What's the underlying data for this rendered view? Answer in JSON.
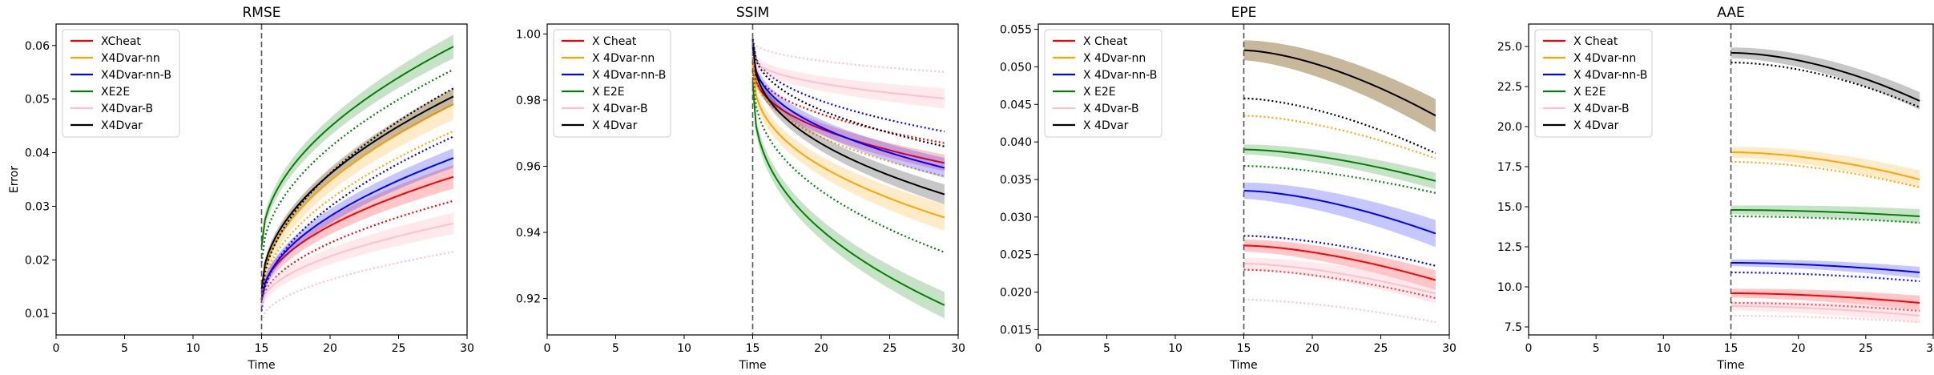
{
  "colors": {
    "Cheat": "#ff0000",
    "4Dvar-nn": "#ffa500",
    "4Dvar-nn-B": "#0000ff",
    "E2E": "#008000",
    "4Dvar-B": "#ffc0cb",
    "4Dvar": "#000000"
  },
  "chart_data": [
    {
      "type": "line",
      "title": "RMSE",
      "xlabel": "Time",
      "ylabel": "Error",
      "xlim": [
        0,
        30
      ],
      "ylim": [
        0.006,
        0.064
      ],
      "xticks": [
        "0",
        "5",
        "10",
        "15",
        "20",
        "25",
        "30"
      ],
      "yticks": [
        "0.01",
        "0.02",
        "0.03",
        "0.04",
        "0.05",
        "0.06"
      ],
      "vline_x": 15,
      "legend": {
        "placement": "top-left",
        "labels": [
          "XCheat",
          "X4Dvar-nn",
          "X4Dvar-nn-B",
          "XE2E",
          "X4Dvar-B",
          "X4Dvar"
        ]
      },
      "series": [
        {
          "name": "Cheat",
          "start": 0.0128,
          "end": 0.0355,
          "band": 0.0022,
          "dotted_start": 0.0115,
          "dotted_end": 0.031,
          "curve": 0.5
        },
        {
          "name": "4Dvar-nn",
          "start": 0.0135,
          "end": 0.049,
          "band": 0.0028,
          "dotted_start": 0.0125,
          "dotted_end": 0.044,
          "curve": 0.5
        },
        {
          "name": "4Dvar-nn-B",
          "start": 0.012,
          "end": 0.039,
          "band": 0.0018,
          "dotted_start": 0.0105,
          "dotted_end": 0.043,
          "curve": 0.5
        },
        {
          "name": "E2E",
          "start": 0.0225,
          "end": 0.0598,
          "band": 0.0022,
          "dotted_start": 0.0195,
          "dotted_end": 0.0555,
          "curve": 0.5
        },
        {
          "name": "4Dvar-B",
          "start": 0.0115,
          "end": 0.0268,
          "band": 0.002,
          "dotted_start": 0.0085,
          "dotted_end": 0.0215,
          "curve": 0.5
        },
        {
          "name": "4Dvar",
          "start": 0.0145,
          "end": 0.0505,
          "band": 0.0015,
          "dotted_start": 0.0125,
          "dotted_end": 0.052,
          "curve": 0.5
        }
      ]
    },
    {
      "type": "line",
      "title": "SSIM",
      "xlabel": "Time",
      "ylabel": "",
      "xlim": [
        0,
        30
      ],
      "ylim": [
        0.909,
        1.003
      ],
      "xticks": [
        "0",
        "5",
        "10",
        "15",
        "20",
        "25",
        "30"
      ],
      "yticks": [
        "0.92",
        "0.94",
        "0.96",
        "0.98",
        "1.00"
      ],
      "vline_x": 15,
      "legend": {
        "placement": "top-left",
        "labels": [
          "X Cheat",
          "X 4Dvar-nn",
          "X 4Dvar-nn-B",
          "X E2E",
          "X 4Dvar-B",
          "X 4Dvar"
        ]
      },
      "series": [
        {
          "name": "Cheat",
          "start": 0.9915,
          "end": 0.961,
          "band": 0.0025,
          "dotted_start": 0.993,
          "dotted_end": 0.967,
          "curve": 0.4
        },
        {
          "name": "4Dvar-nn",
          "start": 0.9905,
          "end": 0.9445,
          "band": 0.004,
          "dotted_start": 0.992,
          "dotted_end": 0.957,
          "curve": 0.4
        },
        {
          "name": "4Dvar-nn-B",
          "start": 0.996,
          "end": 0.9595,
          "band": 0.003,
          "dotted_start": 0.998,
          "dotted_end": 0.9705,
          "curve": 0.4
        },
        {
          "name": "E2E",
          "start": 0.9855,
          "end": 0.918,
          "band": 0.004,
          "dotted_start": 0.989,
          "dotted_end": 0.934,
          "curve": 0.4
        },
        {
          "name": "4Dvar-B",
          "start": 0.994,
          "end": 0.9805,
          "band": 0.003,
          "dotted_start": 0.9985,
          "dotted_end": 0.9885,
          "curve": 0.4
        },
        {
          "name": "4Dvar",
          "start": 0.997,
          "end": 0.9515,
          "band": 0.003,
          "dotted_start": 0.9985,
          "dotted_end": 0.966,
          "curve": 0.4
        }
      ]
    },
    {
      "type": "line",
      "title": "EPE",
      "xlabel": "Time",
      "ylabel": "",
      "xlim": [
        0,
        30
      ],
      "ylim": [
        0.0143,
        0.0557
      ],
      "xticks": [
        "0",
        "5",
        "10",
        "15",
        "20",
        "25",
        "30"
      ],
      "yticks": [
        "0.015",
        "0.020",
        "0.025",
        "0.030",
        "0.035",
        "0.040",
        "0.045",
        "0.050",
        "0.055"
      ],
      "vline_x": 15,
      "legend": {
        "placement": "top-left",
        "labels": [
          "X Cheat",
          "X 4Dvar-nn",
          "X 4Dvar-nn-B",
          "X E2E",
          "X 4Dvar-B",
          "X 4Dvar"
        ]
      },
      "series": [
        {
          "name": "Cheat",
          "start": 0.0262,
          "end": 0.0216,
          "band": 0.0013,
          "dotted_start": 0.023,
          "dotted_end": 0.0192,
          "curve": 1.6
        },
        {
          "name": "4Dvar-nn",
          "start": 0.0522,
          "end": 0.0435,
          "band": 0.0022,
          "dotted_start": 0.0435,
          "dotted_end": 0.0378,
          "curve": 1.6
        },
        {
          "name": "4Dvar-nn-B",
          "start": 0.0335,
          "end": 0.0278,
          "band": 0.0018,
          "dotted_start": 0.0275,
          "dotted_end": 0.0235,
          "curve": 1.6
        },
        {
          "name": "E2E",
          "start": 0.039,
          "end": 0.0348,
          "band": 0.0011,
          "dotted_start": 0.0368,
          "dotted_end": 0.0332,
          "curve": 1.6
        },
        {
          "name": "4Dvar-B",
          "start": 0.0238,
          "end": 0.0198,
          "band": 0.0013,
          "dotted_start": 0.019,
          "dotted_end": 0.016,
          "curve": 1.6
        },
        {
          "name": "4Dvar",
          "start": 0.0522,
          "end": 0.0435,
          "band": 0.0022,
          "dotted_start": 0.0458,
          "dotted_end": 0.0385,
          "curve": 1.6
        }
      ]
    },
    {
      "type": "line",
      "title": "AAE",
      "xlabel": "Time",
      "ylabel": "",
      "xlim": [
        0,
        30
      ],
      "ylim": [
        7.0,
        26.4
      ],
      "xticks": [
        "0",
        "5",
        "10",
        "15",
        "20",
        "25",
        "30"
      ],
      "yticks": [
        "7.5",
        "10.0",
        "12.5",
        "15.0",
        "17.5",
        "20.0",
        "22.5",
        "25.0"
      ],
      "vline_x": 15,
      "legend": {
        "placement": "top-left",
        "labels": [
          "X Cheat",
          "X 4Dvar-nn",
          "X 4Dvar-nn-B",
          "X E2E",
          "X 4Dvar-B",
          "X 4Dvar"
        ]
      },
      "series": [
        {
          "name": "Cheat",
          "start": 9.6,
          "end": 9.0,
          "band": 0.45,
          "dotted_start": 9.0,
          "dotted_end": 8.5,
          "curve": 1.8
        },
        {
          "name": "4Dvar-nn",
          "start": 18.4,
          "end": 16.7,
          "band": 0.55,
          "dotted_start": 17.8,
          "dotted_end": 16.2,
          "curve": 1.8
        },
        {
          "name": "4Dvar-nn-B",
          "start": 11.5,
          "end": 10.9,
          "band": 0.35,
          "dotted_start": 10.9,
          "dotted_end": 10.35,
          "curve": 1.8
        },
        {
          "name": "E2E",
          "start": 14.8,
          "end": 14.4,
          "band": 0.45,
          "dotted_start": 14.4,
          "dotted_end": 14.0,
          "curve": 1.8
        },
        {
          "name": "4Dvar-B",
          "start": 8.8,
          "end": 8.2,
          "band": 0.45,
          "dotted_start": 8.2,
          "dotted_end": 7.8,
          "curve": 1.8
        },
        {
          "name": "4Dvar",
          "start": 24.6,
          "end": 21.6,
          "band": 0.55,
          "dotted_start": 24.0,
          "dotted_end": 21.2,
          "curve": 1.8
        }
      ]
    }
  ]
}
